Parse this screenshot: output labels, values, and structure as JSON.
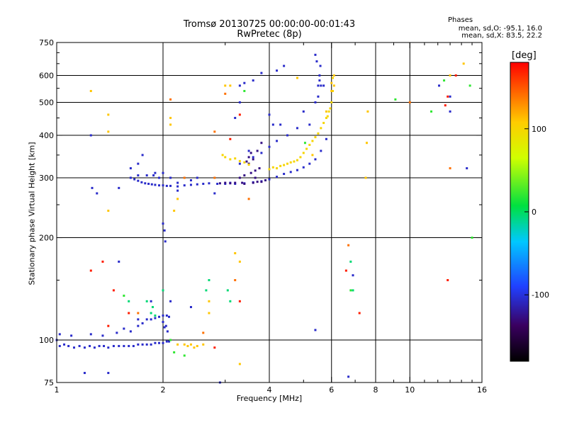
{
  "header": {
    "title_line1": "Tromsø 20130725 00:00:00-00:01:43",
    "title_line2": "RwPretec (8p)",
    "phases_title": "Phases",
    "phases_o": "mean, sd,O: -95.1, 16.0",
    "phases_x": "mean, sd,X:  83.5, 22.2"
  },
  "colorbar": {
    "title": "[deg]",
    "ticks": [
      {
        "value": 100,
        "label": "100"
      },
      {
        "value": 0,
        "label": "0"
      },
      {
        "value": -100,
        "label": "-100"
      }
    ],
    "range": [
      -180,
      180
    ]
  },
  "chart_data": {
    "type": "scatter",
    "xlabel": "Frequency [MHz]",
    "ylabel": "Stationary phase Virtual Height [km]",
    "xscale": "log",
    "yscale": "log",
    "xlim": [
      1,
      16
    ],
    "ylim": [
      75,
      750
    ],
    "xticks": [
      1,
      2,
      4,
      6,
      8,
      10,
      16
    ],
    "xtick_labels": [
      "1",
      "2",
      "4",
      "6",
      "8",
      "10",
      "16"
    ],
    "xgrid": [
      2,
      4,
      6,
      8,
      10
    ],
    "xminor": [
      3,
      5,
      7,
      9,
      11,
      12,
      13,
      14,
      15
    ],
    "yticks": [
      75,
      100,
      200,
      300,
      400,
      500,
      600,
      750
    ],
    "ytick_labels": [
      "75",
      "100",
      "200",
      "300",
      "400",
      "500",
      "600",
      "750"
    ],
    "ygrid": [
      100,
      200,
      300,
      400,
      500,
      600
    ],
    "color_scale": "phase_deg",
    "series": [
      {
        "points": [
          [
            1.0,
            100
          ],
          [
            1.02,
            96
          ],
          [
            1.05,
            97
          ],
          [
            1.08,
            96
          ],
          [
            1.12,
            95
          ],
          [
            1.16,
            96
          ],
          [
            1.2,
            95
          ],
          [
            1.24,
            96
          ],
          [
            1.28,
            95
          ],
          [
            1.32,
            96
          ],
          [
            1.36,
            96
          ],
          [
            1.4,
            95
          ],
          [
            1.45,
            96
          ],
          [
            1.5,
            96
          ],
          [
            1.55,
            96
          ],
          [
            1.6,
            96
          ],
          [
            1.65,
            96
          ],
          [
            1.7,
            97
          ],
          [
            1.75,
            97
          ],
          [
            1.8,
            97
          ],
          [
            1.85,
            97
          ],
          [
            1.9,
            98
          ],
          [
            1.95,
            98
          ],
          [
            2.0,
            98
          ],
          [
            2.05,
            99
          ],
          [
            2.08,
            99
          ],
          [
            1.02,
            104
          ],
          [
            1.1,
            103
          ],
          [
            1.25,
            104
          ],
          [
            1.35,
            103
          ],
          [
            1.48,
            105
          ],
          [
            1.55,
            108
          ],
          [
            1.62,
            106
          ],
          [
            1.7,
            110
          ],
          [
            1.75,
            112
          ],
          [
            1.8,
            115
          ],
          [
            1.85,
            115
          ],
          [
            1.9,
            116
          ],
          [
            1.95,
            117
          ],
          [
            2.0,
            118
          ],
          [
            2.05,
            118
          ],
          [
            2.08,
            117
          ],
          [
            2.0,
            113
          ],
          [
            2.04,
            110
          ],
          [
            2.06,
            106
          ],
          [
            2.02,
            109
          ],
          [
            2.0,
            220
          ],
          [
            2.02,
            210
          ],
          [
            2.03,
            195
          ],
          [
            1.62,
            300
          ],
          [
            1.66,
            297
          ],
          [
            1.7,
            294
          ],
          [
            1.74,
            291
          ],
          [
            1.78,
            289
          ],
          [
            1.82,
            288
          ],
          [
            1.86,
            287
          ],
          [
            1.9,
            286
          ],
          [
            1.95,
            285
          ],
          [
            2.0,
            285
          ],
          [
            2.05,
            284
          ],
          [
            2.1,
            284
          ],
          [
            2.2,
            283
          ],
          [
            2.3,
            285
          ],
          [
            2.4,
            286
          ],
          [
            2.5,
            287
          ],
          [
            2.6,
            288
          ],
          [
            2.7,
            289
          ],
          [
            2.85,
            288
          ],
          [
            3.0,
            288
          ],
          [
            3.2,
            288
          ],
          [
            3.4,
            289
          ],
          [
            3.6,
            291
          ],
          [
            3.8,
            293
          ],
          [
            4.0,
            297
          ],
          [
            4.2,
            302
          ],
          [
            4.4,
            308
          ],
          [
            4.6,
            312
          ],
          [
            4.8,
            316
          ],
          [
            5.0,
            322
          ],
          [
            5.2,
            330
          ],
          [
            5.4,
            340
          ],
          [
            5.6,
            360
          ],
          [
            5.8,
            390
          ],
          [
            1.62,
            320
          ],
          [
            1.7,
            330
          ],
          [
            1.75,
            350
          ],
          [
            1.8,
            305
          ],
          [
            1.88,
            305
          ],
          [
            1.95,
            300
          ],
          [
            2.0,
            310
          ],
          [
            2.1,
            300
          ],
          [
            2.2,
            290
          ],
          [
            3.3,
            330
          ],
          [
            3.5,
            360
          ],
          [
            3.6,
            345
          ],
          [
            3.8,
            355
          ],
          [
            4.0,
            370
          ],
          [
            4.2,
            385
          ],
          [
            4.5,
            400
          ],
          [
            4.8,
            420
          ],
          [
            5.0,
            470
          ],
          [
            5.2,
            430
          ],
          [
            5.4,
            500
          ],
          [
            5.5,
            560
          ],
          [
            5.55,
            600
          ],
          [
            5.58,
            640
          ],
          [
            5.55,
            580
          ],
          [
            5.5,
            520
          ],
          [
            3.2,
            450
          ],
          [
            3.3,
            500
          ],
          [
            3.4,
            570
          ],
          [
            3.6,
            580
          ],
          [
            3.8,
            610
          ],
          [
            4.2,
            620
          ],
          [
            4.4,
            640
          ],
          [
            1.5,
            280
          ],
          [
            2.8,
            270
          ],
          [
            2.5,
            300
          ],
          [
            2.2,
            275
          ],
          [
            3.1,
            290
          ],
          [
            1.7,
            305
          ],
          [
            1.9,
            310
          ],
          [
            2.4,
            295
          ],
          [
            1.25,
            400
          ],
          [
            1.26,
            280
          ],
          [
            1.3,
            270
          ],
          [
            1.5,
            170
          ],
          [
            1.7,
            115
          ],
          [
            1.85,
            130
          ],
          [
            2.1,
            130
          ],
          [
            1.4,
            80
          ],
          [
            1.2,
            80
          ],
          [
            2.4,
            125
          ],
          [
            2.9,
            75
          ],
          [
            5.4,
            107
          ],
          [
            6.7,
            78
          ],
          [
            6.9,
            155
          ],
          [
            13.0,
            470
          ],
          [
            13.0,
            520
          ],
          [
            14.5,
            320
          ],
          [
            12.1,
            560
          ],
          [
            4.0,
            460
          ],
          [
            4.1,
            430
          ],
          [
            4.3,
            430
          ],
          [
            5.7,
            560
          ],
          [
            3.3,
            560
          ],
          [
            5.4,
            690
          ],
          [
            5.45,
            660
          ],
          [
            5.6,
            560
          ]
        ],
        "phase": -105
      },
      {
        "points": [
          [
            3.2,
            290
          ],
          [
            3.4,
            288
          ],
          [
            3.6,
            290
          ],
          [
            3.8,
            292
          ],
          [
            3.0,
            290
          ],
          [
            3.1,
            289
          ],
          [
            2.9,
            289
          ],
          [
            3.7,
            292
          ],
          [
            3.9,
            295
          ],
          [
            3.5,
            330
          ],
          [
            3.55,
            310
          ],
          [
            3.65,
            315
          ],
          [
            3.75,
            320
          ],
          [
            3.45,
            335
          ],
          [
            3.3,
            300
          ],
          [
            3.4,
            305
          ],
          [
            3.6,
            340
          ],
          [
            3.7,
            360
          ],
          [
            3.8,
            380
          ],
          [
            3.5,
            345
          ],
          [
            3.55,
            355
          ],
          [
            3.35,
            290
          ],
          [
            3.65,
            300
          ]
        ],
        "phase": -125
      },
      {
        "points": [
          [
            4.0,
            318
          ],
          [
            4.1,
            322
          ],
          [
            4.2,
            320
          ],
          [
            4.3,
            325
          ],
          [
            4.4,
            327
          ],
          [
            4.5,
            330
          ],
          [
            4.6,
            333
          ],
          [
            4.7,
            335
          ],
          [
            4.8,
            338
          ],
          [
            4.9,
            345
          ],
          [
            5.0,
            355
          ],
          [
            5.1,
            365
          ],
          [
            5.2,
            375
          ],
          [
            5.3,
            385
          ],
          [
            5.4,
            395
          ],
          [
            5.5,
            405
          ],
          [
            5.6,
            420
          ],
          [
            5.7,
            435
          ],
          [
            5.8,
            450
          ],
          [
            5.9,
            470
          ],
          [
            6.0,
            500
          ],
          [
            6.05,
            540
          ],
          [
            6.05,
            590
          ],
          [
            5.95,
            480
          ],
          [
            5.85,
            455
          ],
          [
            3.0,
            345
          ],
          [
            3.1,
            340
          ],
          [
            3.2,
            342
          ],
          [
            3.3,
            336
          ],
          [
            3.4,
            333
          ],
          [
            3.5,
            328
          ],
          [
            2.95,
            350
          ]
        ],
        "phase": 100
      },
      {
        "points": [
          [
            2.2,
            97
          ],
          [
            2.3,
            97
          ],
          [
            2.4,
            97
          ],
          [
            2.5,
            96
          ],
          [
            2.6,
            97
          ],
          [
            2.45,
            95
          ],
          [
            2.35,
            96
          ],
          [
            3.3,
            85
          ],
          [
            6.1,
            600
          ],
          [
            6.0,
            570
          ],
          [
            6.0,
            540
          ],
          [
            5.8,
            470
          ],
          [
            5.3,
            350
          ],
          [
            7.5,
            300
          ],
          [
            7.6,
            470
          ],
          [
            7.55,
            380
          ],
          [
            1.4,
            460
          ],
          [
            1.25,
            540
          ],
          [
            2.1,
            430
          ],
          [
            2.1,
            450
          ],
          [
            3.3,
            170
          ],
          [
            3.2,
            180
          ],
          [
            2.7,
            130
          ],
          [
            2.7,
            120
          ],
          [
            14.2,
            650
          ],
          [
            13.0,
            600
          ],
          [
            4.8,
            590
          ],
          [
            3.1,
            560
          ],
          [
            1.4,
            410
          ],
          [
            1.4,
            240
          ],
          [
            3.0,
            560
          ],
          [
            6.1,
            560
          ],
          [
            2.2,
            260
          ],
          [
            2.15,
            240
          ]
        ],
        "phase": 110
      },
      {
        "points": [
          [
            2.1,
            100
          ],
          [
            2.15,
            92
          ],
          [
            2.3,
            90
          ],
          [
            1.55,
            135
          ],
          [
            3.4,
            540
          ],
          [
            6.8,
            140
          ],
          [
            12.5,
            580
          ],
          [
            11.5,
            470
          ],
          [
            5.05,
            380
          ],
          [
            9.1,
            510
          ],
          [
            15.0,
            200
          ],
          [
            14.8,
            560
          ]
        ],
        "phase": 20
      },
      {
        "points": [
          [
            2.3,
            300
          ],
          [
            3.5,
            260
          ],
          [
            2.8,
            300
          ],
          [
            3.0,
            530
          ],
          [
            3.2,
            150
          ],
          [
            1.7,
            120
          ],
          [
            2.6,
            105
          ],
          [
            6.7,
            190
          ],
          [
            2.8,
            410
          ],
          [
            2.1,
            510
          ],
          [
            10.0,
            500
          ],
          [
            13.0,
            320
          ]
        ],
        "phase": 140
      },
      {
        "points": [
          [
            1.8,
            130
          ],
          [
            1.85,
            120
          ],
          [
            1.9,
            118
          ],
          [
            1.87,
            125
          ],
          [
            2.65,
            140
          ],
          [
            2.7,
            150
          ],
          [
            3.1,
            130
          ],
          [
            3.05,
            140
          ],
          [
            6.8,
            170
          ],
          [
            6.9,
            140
          ],
          [
            1.6,
            130
          ],
          [
            2.0,
            140
          ]
        ],
        "phase": -5
      },
      {
        "points": [
          [
            1.25,
            160
          ],
          [
            1.35,
            170
          ],
          [
            1.4,
            110
          ],
          [
            1.45,
            140
          ],
          [
            1.6,
            120
          ],
          [
            2.8,
            95
          ],
          [
            3.3,
            130
          ],
          [
            6.6,
            160
          ],
          [
            7.2,
            120
          ],
          [
            12.6,
            490
          ],
          [
            12.8,
            520
          ],
          [
            13.5,
            600
          ],
          [
            3.1,
            390
          ],
          [
            3.3,
            460
          ],
          [
            12.8,
            150
          ]
        ],
        "phase": 170
      }
    ]
  }
}
